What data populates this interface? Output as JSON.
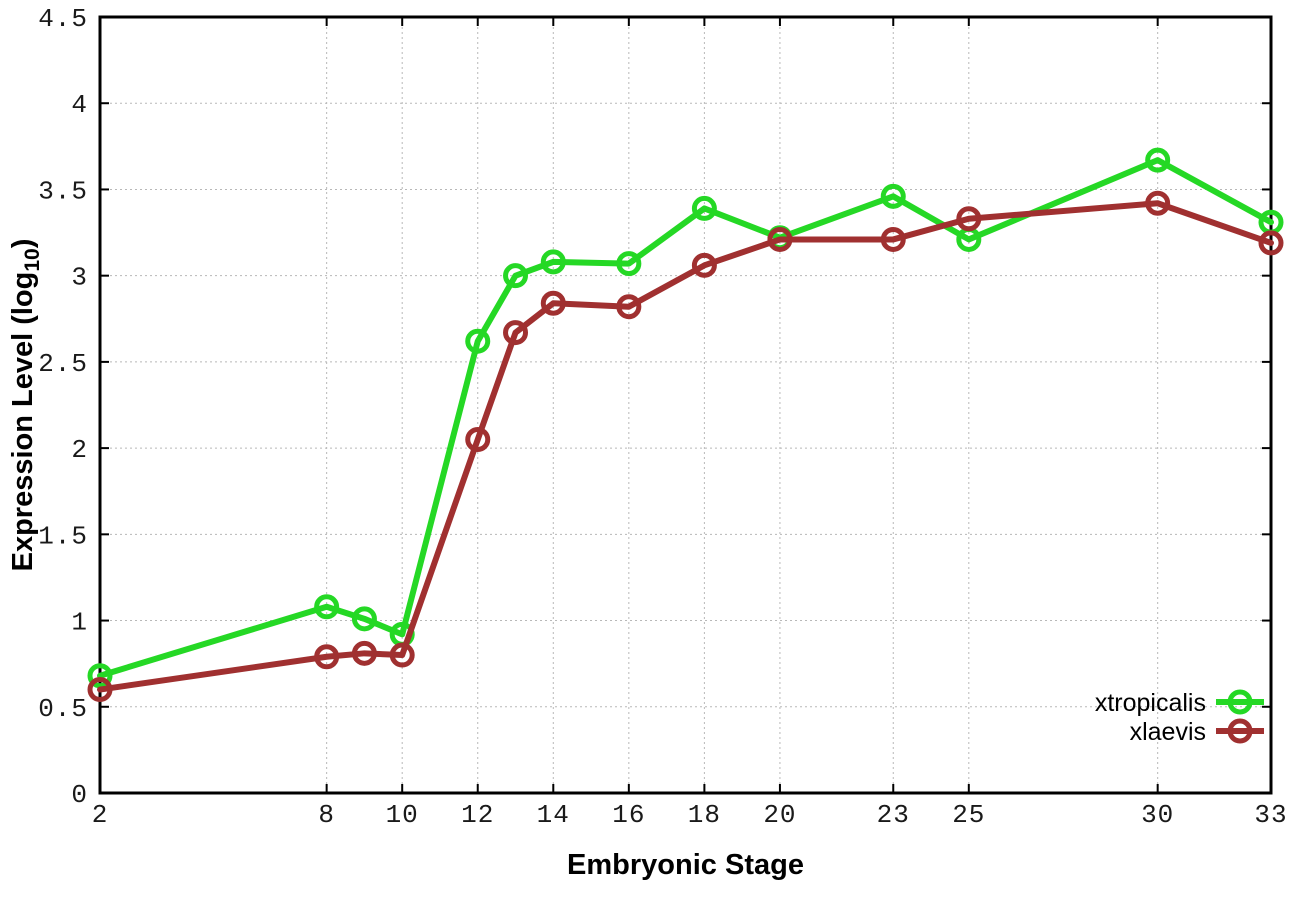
{
  "chart_data": {
    "type": "line",
    "title": "",
    "xlabel": "Embryonic Stage",
    "ylabel": {
      "main": "Expression Level (log",
      "sub": "10",
      "end": ")"
    },
    "xlim": [
      2,
      33
    ],
    "ylim": [
      0,
      4.5
    ],
    "grid": true,
    "legend_position": "bottom-right-inside",
    "marker": "open-circle",
    "axis_color": "#000000",
    "gridline_color": "#b8b8b8",
    "x": [
      2,
      8,
      9,
      10,
      12,
      13,
      14,
      16,
      18,
      20,
      23,
      25,
      30,
      33
    ],
    "x_ticks": [
      2,
      8,
      10,
      12,
      14,
      16,
      18,
      20,
      23,
      25,
      30,
      33
    ],
    "y_ticks": [
      0,
      0.5,
      1,
      1.5,
      2,
      2.5,
      3,
      3.5,
      4,
      4.5
    ],
    "y_tick_labels": [
      "0",
      "0.5",
      "1",
      "1.5",
      "2",
      "2.5",
      "3",
      "3.5",
      "4",
      "4.5"
    ],
    "series": [
      {
        "name": "xtropicalis",
        "color": "#25d825",
        "values": [
          0.68,
          1.08,
          1.01,
          0.92,
          2.62,
          3.0,
          3.08,
          3.07,
          3.39,
          3.22,
          3.46,
          3.21,
          3.67,
          3.31
        ]
      },
      {
        "name": "xlaevis",
        "color": "#a03030",
        "values": [
          0.6,
          0.79,
          0.81,
          0.8,
          2.05,
          2.67,
          2.84,
          2.82,
          3.06,
          3.21,
          3.21,
          3.33,
          3.42,
          3.19
        ]
      }
    ]
  }
}
